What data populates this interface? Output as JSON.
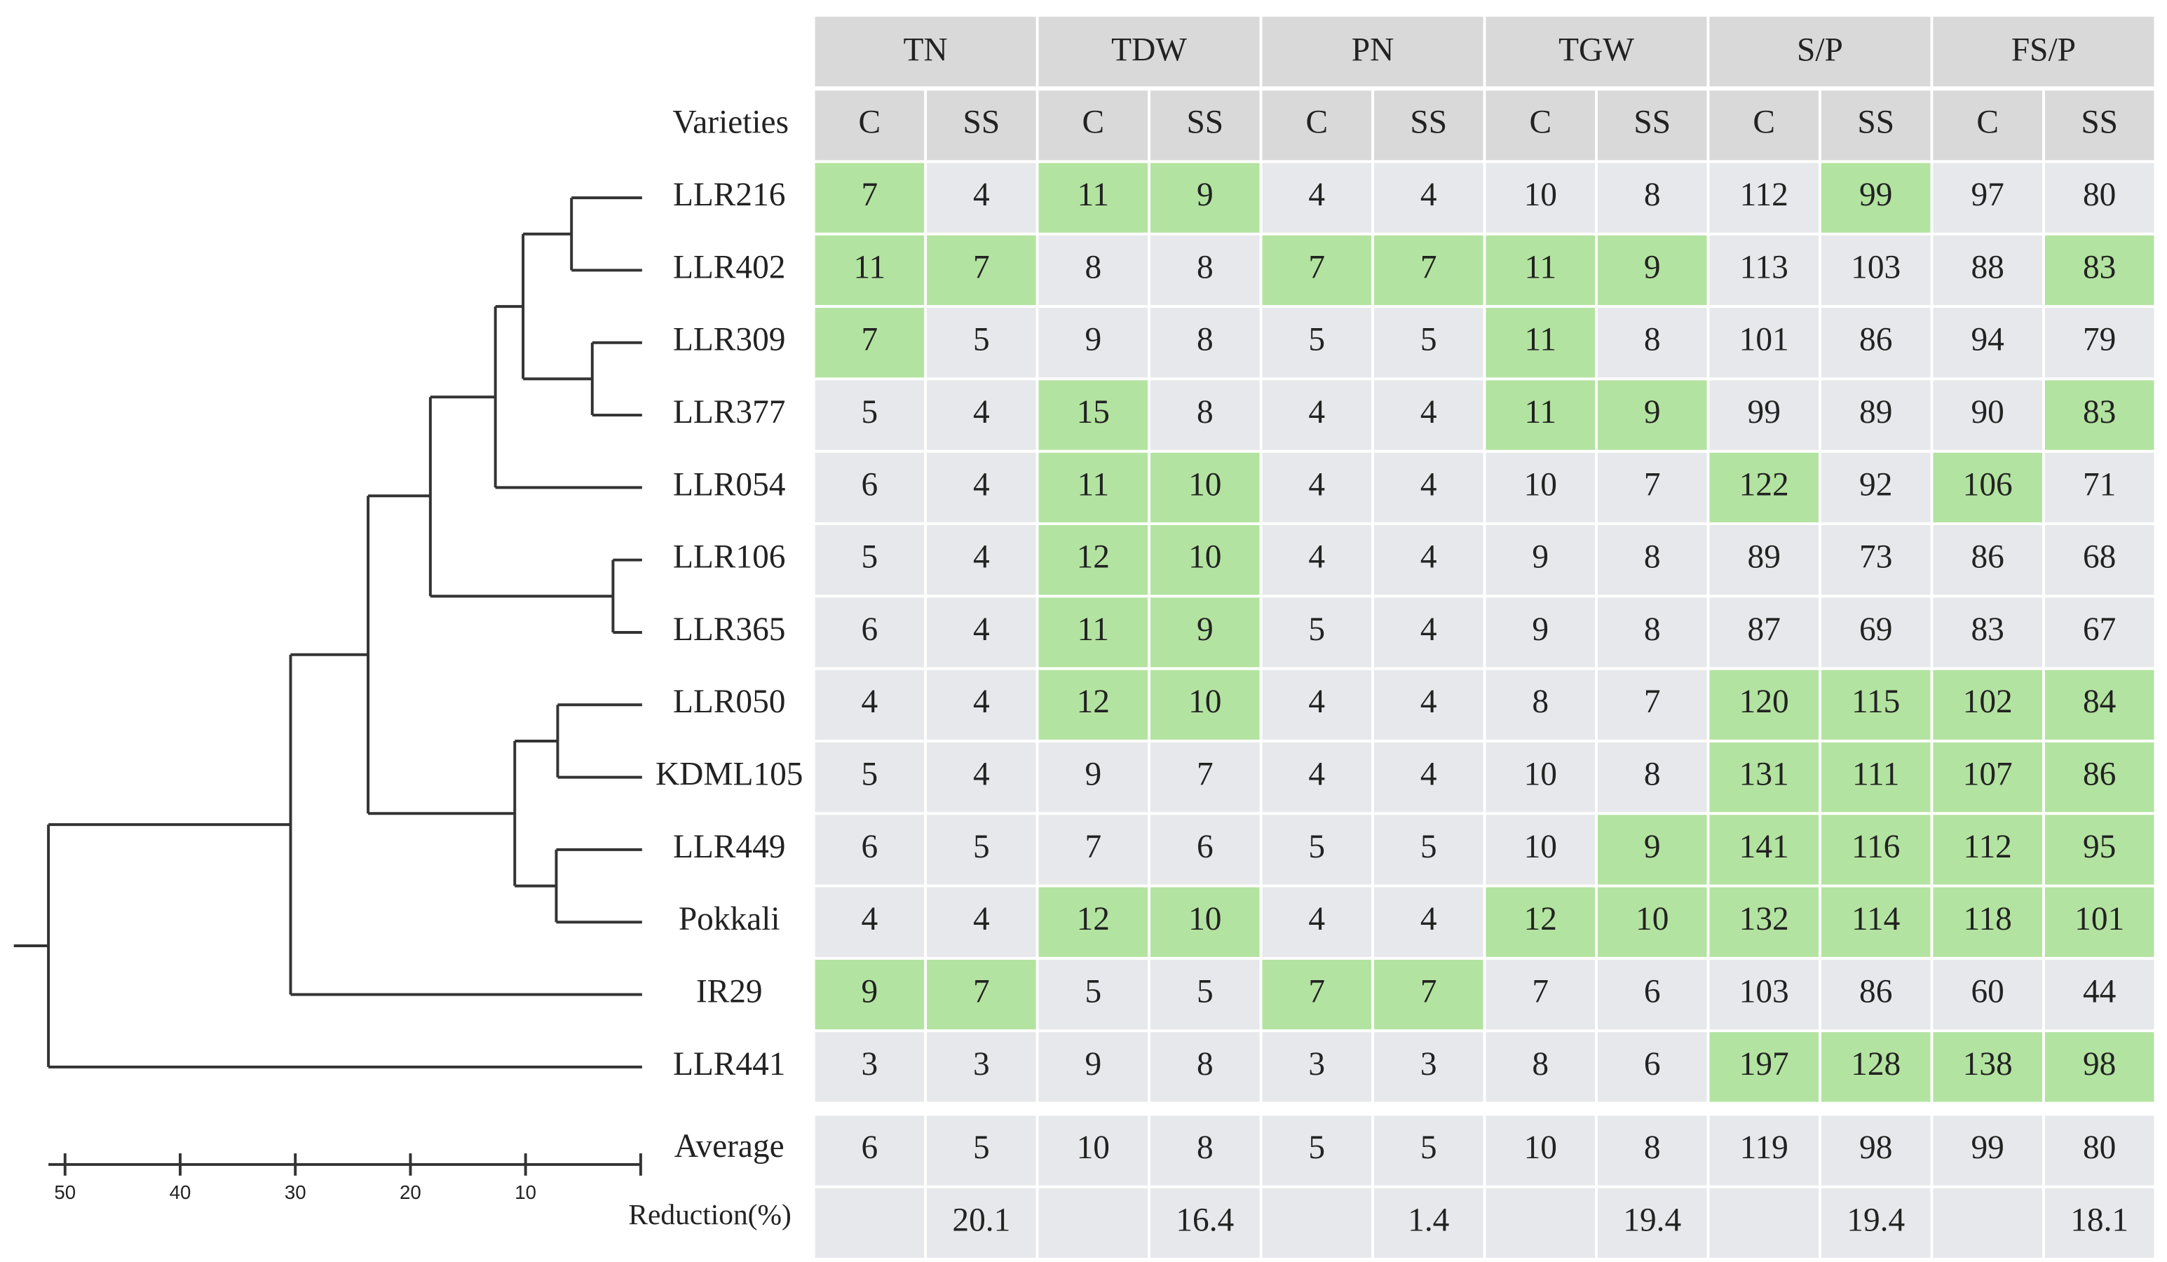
{
  "table": {
    "groups": [
      "TN",
      "TDW",
      "PN",
      "TGW",
      "S/P",
      "FS/P"
    ],
    "subheader_label": "Varieties",
    "subheaders": [
      "C",
      "SS",
      "C",
      "SS",
      "C",
      "SS",
      "C",
      "SS",
      "C",
      "SS",
      "C",
      "SS"
    ],
    "highlight_color": "#b3e3a0",
    "cell_color": "#e6e8eb",
    "header_color": "#d9d9d9",
    "rows": [
      {
        "variety": "LLR216",
        "values": [
          7,
          4,
          11,
          9,
          4,
          4,
          10,
          8,
          112,
          99,
          97,
          80
        ],
        "highlight": [
          true,
          false,
          true,
          true,
          false,
          false,
          false,
          false,
          false,
          true,
          false,
          false
        ]
      },
      {
        "variety": "LLR402",
        "values": [
          11,
          7,
          8,
          8,
          7,
          7,
          11,
          9,
          113,
          103,
          88,
          83
        ],
        "highlight": [
          true,
          true,
          false,
          false,
          true,
          true,
          true,
          true,
          false,
          false,
          false,
          true
        ]
      },
      {
        "variety": "LLR309",
        "values": [
          7,
          5,
          9,
          8,
          5,
          5,
          11,
          8,
          101,
          86,
          94,
          79
        ],
        "highlight": [
          true,
          false,
          false,
          false,
          false,
          false,
          true,
          false,
          false,
          false,
          false,
          false
        ]
      },
      {
        "variety": "LLR377",
        "values": [
          5,
          4,
          15,
          8,
          4,
          4,
          11,
          9,
          99,
          89,
          90,
          83
        ],
        "highlight": [
          false,
          false,
          true,
          false,
          false,
          false,
          true,
          true,
          false,
          false,
          false,
          true
        ]
      },
      {
        "variety": "LLR054",
        "values": [
          6,
          4,
          11,
          10,
          4,
          4,
          10,
          7,
          122,
          92,
          106,
          71
        ],
        "highlight": [
          false,
          false,
          true,
          true,
          false,
          false,
          false,
          false,
          true,
          false,
          true,
          false
        ]
      },
      {
        "variety": "LLR106",
        "values": [
          5,
          4,
          12,
          10,
          4,
          4,
          9,
          8,
          89,
          73,
          86,
          68
        ],
        "highlight": [
          false,
          false,
          true,
          true,
          false,
          false,
          false,
          false,
          false,
          false,
          false,
          false
        ]
      },
      {
        "variety": "LLR365",
        "values": [
          6,
          4,
          11,
          9,
          5,
          4,
          9,
          8,
          87,
          69,
          83,
          67
        ],
        "highlight": [
          false,
          false,
          true,
          true,
          false,
          false,
          false,
          false,
          false,
          false,
          false,
          false
        ]
      },
      {
        "variety": "LLR050",
        "values": [
          4,
          4,
          12,
          10,
          4,
          4,
          8,
          7,
          120,
          115,
          102,
          84
        ],
        "highlight": [
          false,
          false,
          true,
          true,
          false,
          false,
          false,
          false,
          true,
          true,
          true,
          true
        ]
      },
      {
        "variety": "KDML105",
        "values": [
          5,
          4,
          9,
          7,
          4,
          4,
          10,
          8,
          131,
          111,
          107,
          86
        ],
        "highlight": [
          false,
          false,
          false,
          false,
          false,
          false,
          false,
          false,
          true,
          true,
          true,
          true
        ]
      },
      {
        "variety": "LLR449",
        "values": [
          6,
          5,
          7,
          6,
          5,
          5,
          10,
          9,
          141,
          116,
          112,
          95
        ],
        "highlight": [
          false,
          false,
          false,
          false,
          false,
          false,
          false,
          true,
          true,
          true,
          true,
          true
        ]
      },
      {
        "variety": "Pokkali",
        "values": [
          4,
          4,
          12,
          10,
          4,
          4,
          12,
          10,
          132,
          114,
          118,
          101
        ],
        "highlight": [
          false,
          false,
          true,
          true,
          false,
          false,
          true,
          true,
          true,
          true,
          true,
          true
        ]
      },
      {
        "variety": "IR29",
        "values": [
          9,
          7,
          5,
          5,
          7,
          7,
          7,
          6,
          103,
          86,
          60,
          44
        ],
        "highlight": [
          true,
          true,
          false,
          false,
          true,
          true,
          false,
          false,
          false,
          false,
          false,
          false
        ]
      },
      {
        "variety": "LLR441",
        "values": [
          3,
          3,
          9,
          8,
          3,
          3,
          8,
          6,
          197,
          128,
          138,
          98
        ],
        "highlight": [
          false,
          false,
          false,
          false,
          false,
          false,
          false,
          false,
          true,
          true,
          true,
          true
        ]
      }
    ],
    "average": {
      "label": "Average",
      "values": [
        6,
        5,
        10,
        8,
        5,
        5,
        10,
        8,
        119,
        98,
        99,
        80
      ]
    },
    "reduction": {
      "label": "Reduction(%)",
      "values": [
        20.1,
        16.4,
        1.4,
        19.4,
        19.4,
        18.1
      ]
    }
  },
  "dendrogram": {
    "scale_ticks": [
      50,
      40,
      30,
      20,
      10
    ]
  }
}
